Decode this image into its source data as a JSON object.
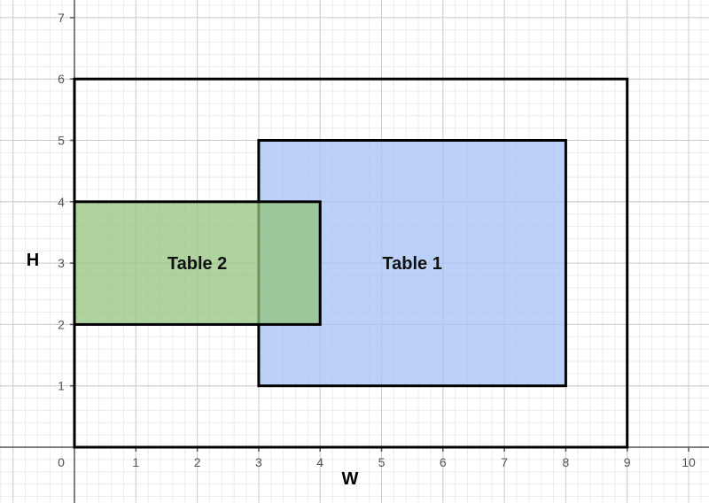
{
  "chart_data": {
    "type": "diagram",
    "xlabel": "W",
    "ylabel": "H",
    "xlim": [
      0,
      10
    ],
    "ylim": [
      0,
      7
    ],
    "x_ticks": [
      "0",
      "1",
      "2",
      "3",
      "4",
      "5",
      "6",
      "7",
      "8",
      "9",
      "10"
    ],
    "y_ticks": [
      "1",
      "2",
      "3",
      "4",
      "5",
      "6",
      "7"
    ],
    "grid": true,
    "rectangles": [
      {
        "id": "room",
        "label": "",
        "x0": 0,
        "y0": 0,
        "x1": 9,
        "y1": 6,
        "fill": "none",
        "stroke": "#000000"
      },
      {
        "id": "table1",
        "label": "Table 1",
        "x0": 3,
        "y0": 1,
        "x1": 8,
        "y1": 5,
        "fill": "#a4c2f4",
        "stroke": "#000000"
      },
      {
        "id": "table2",
        "label": "Table 2",
        "x0": 0,
        "y0": 2,
        "x1": 4,
        "y1": 4,
        "fill": "#93c47d",
        "stroke": "#000000"
      }
    ],
    "colors": {
      "grid_major": "#cccccc",
      "grid_minor": "#ececec",
      "axis": "#555555"
    }
  }
}
